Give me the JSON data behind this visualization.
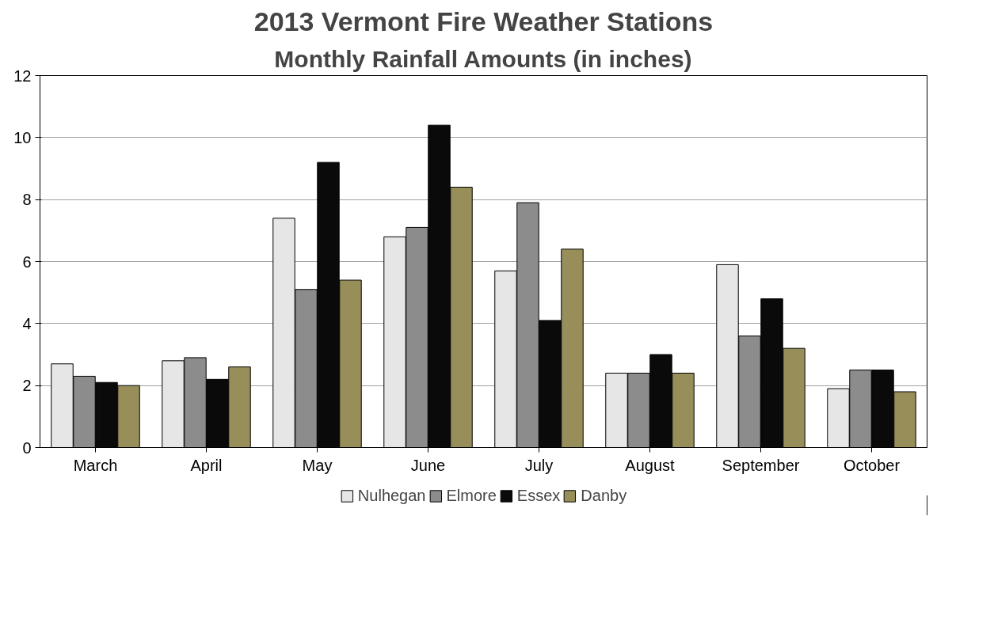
{
  "chart_data": {
    "type": "bar",
    "title": "2013 Vermont Fire Weather Stations",
    "subtitle": "Monthly Rainfall Amounts (in inches)",
    "categories": [
      "March",
      "April",
      "May",
      "June",
      "July",
      "August",
      "September",
      "October"
    ],
    "series": [
      {
        "name": "Nulhegan",
        "color": "#e6e6e6",
        "values": [
          2.7,
          2.8,
          7.4,
          6.8,
          5.7,
          2.4,
          5.9,
          1.9
        ]
      },
      {
        "name": "Elmore",
        "color": "#8c8c8c",
        "values": [
          2.3,
          2.9,
          5.1,
          7.1,
          7.9,
          2.4,
          3.6,
          2.5
        ]
      },
      {
        "name": "Essex",
        "color": "#0a0a0a",
        "values": [
          2.1,
          2.2,
          9.2,
          10.4,
          4.1,
          3.0,
          4.8,
          2.5
        ]
      },
      {
        "name": "Danby",
        "color": "#978e5a",
        "values": [
          2.0,
          2.6,
          5.4,
          8.4,
          6.4,
          2.4,
          3.2,
          1.8
        ]
      }
    ],
    "ylim": [
      0,
      12
    ],
    "yticks": [
      0,
      2,
      4,
      6,
      8,
      10,
      12
    ],
    "grid": "y",
    "legend": "bottom"
  }
}
